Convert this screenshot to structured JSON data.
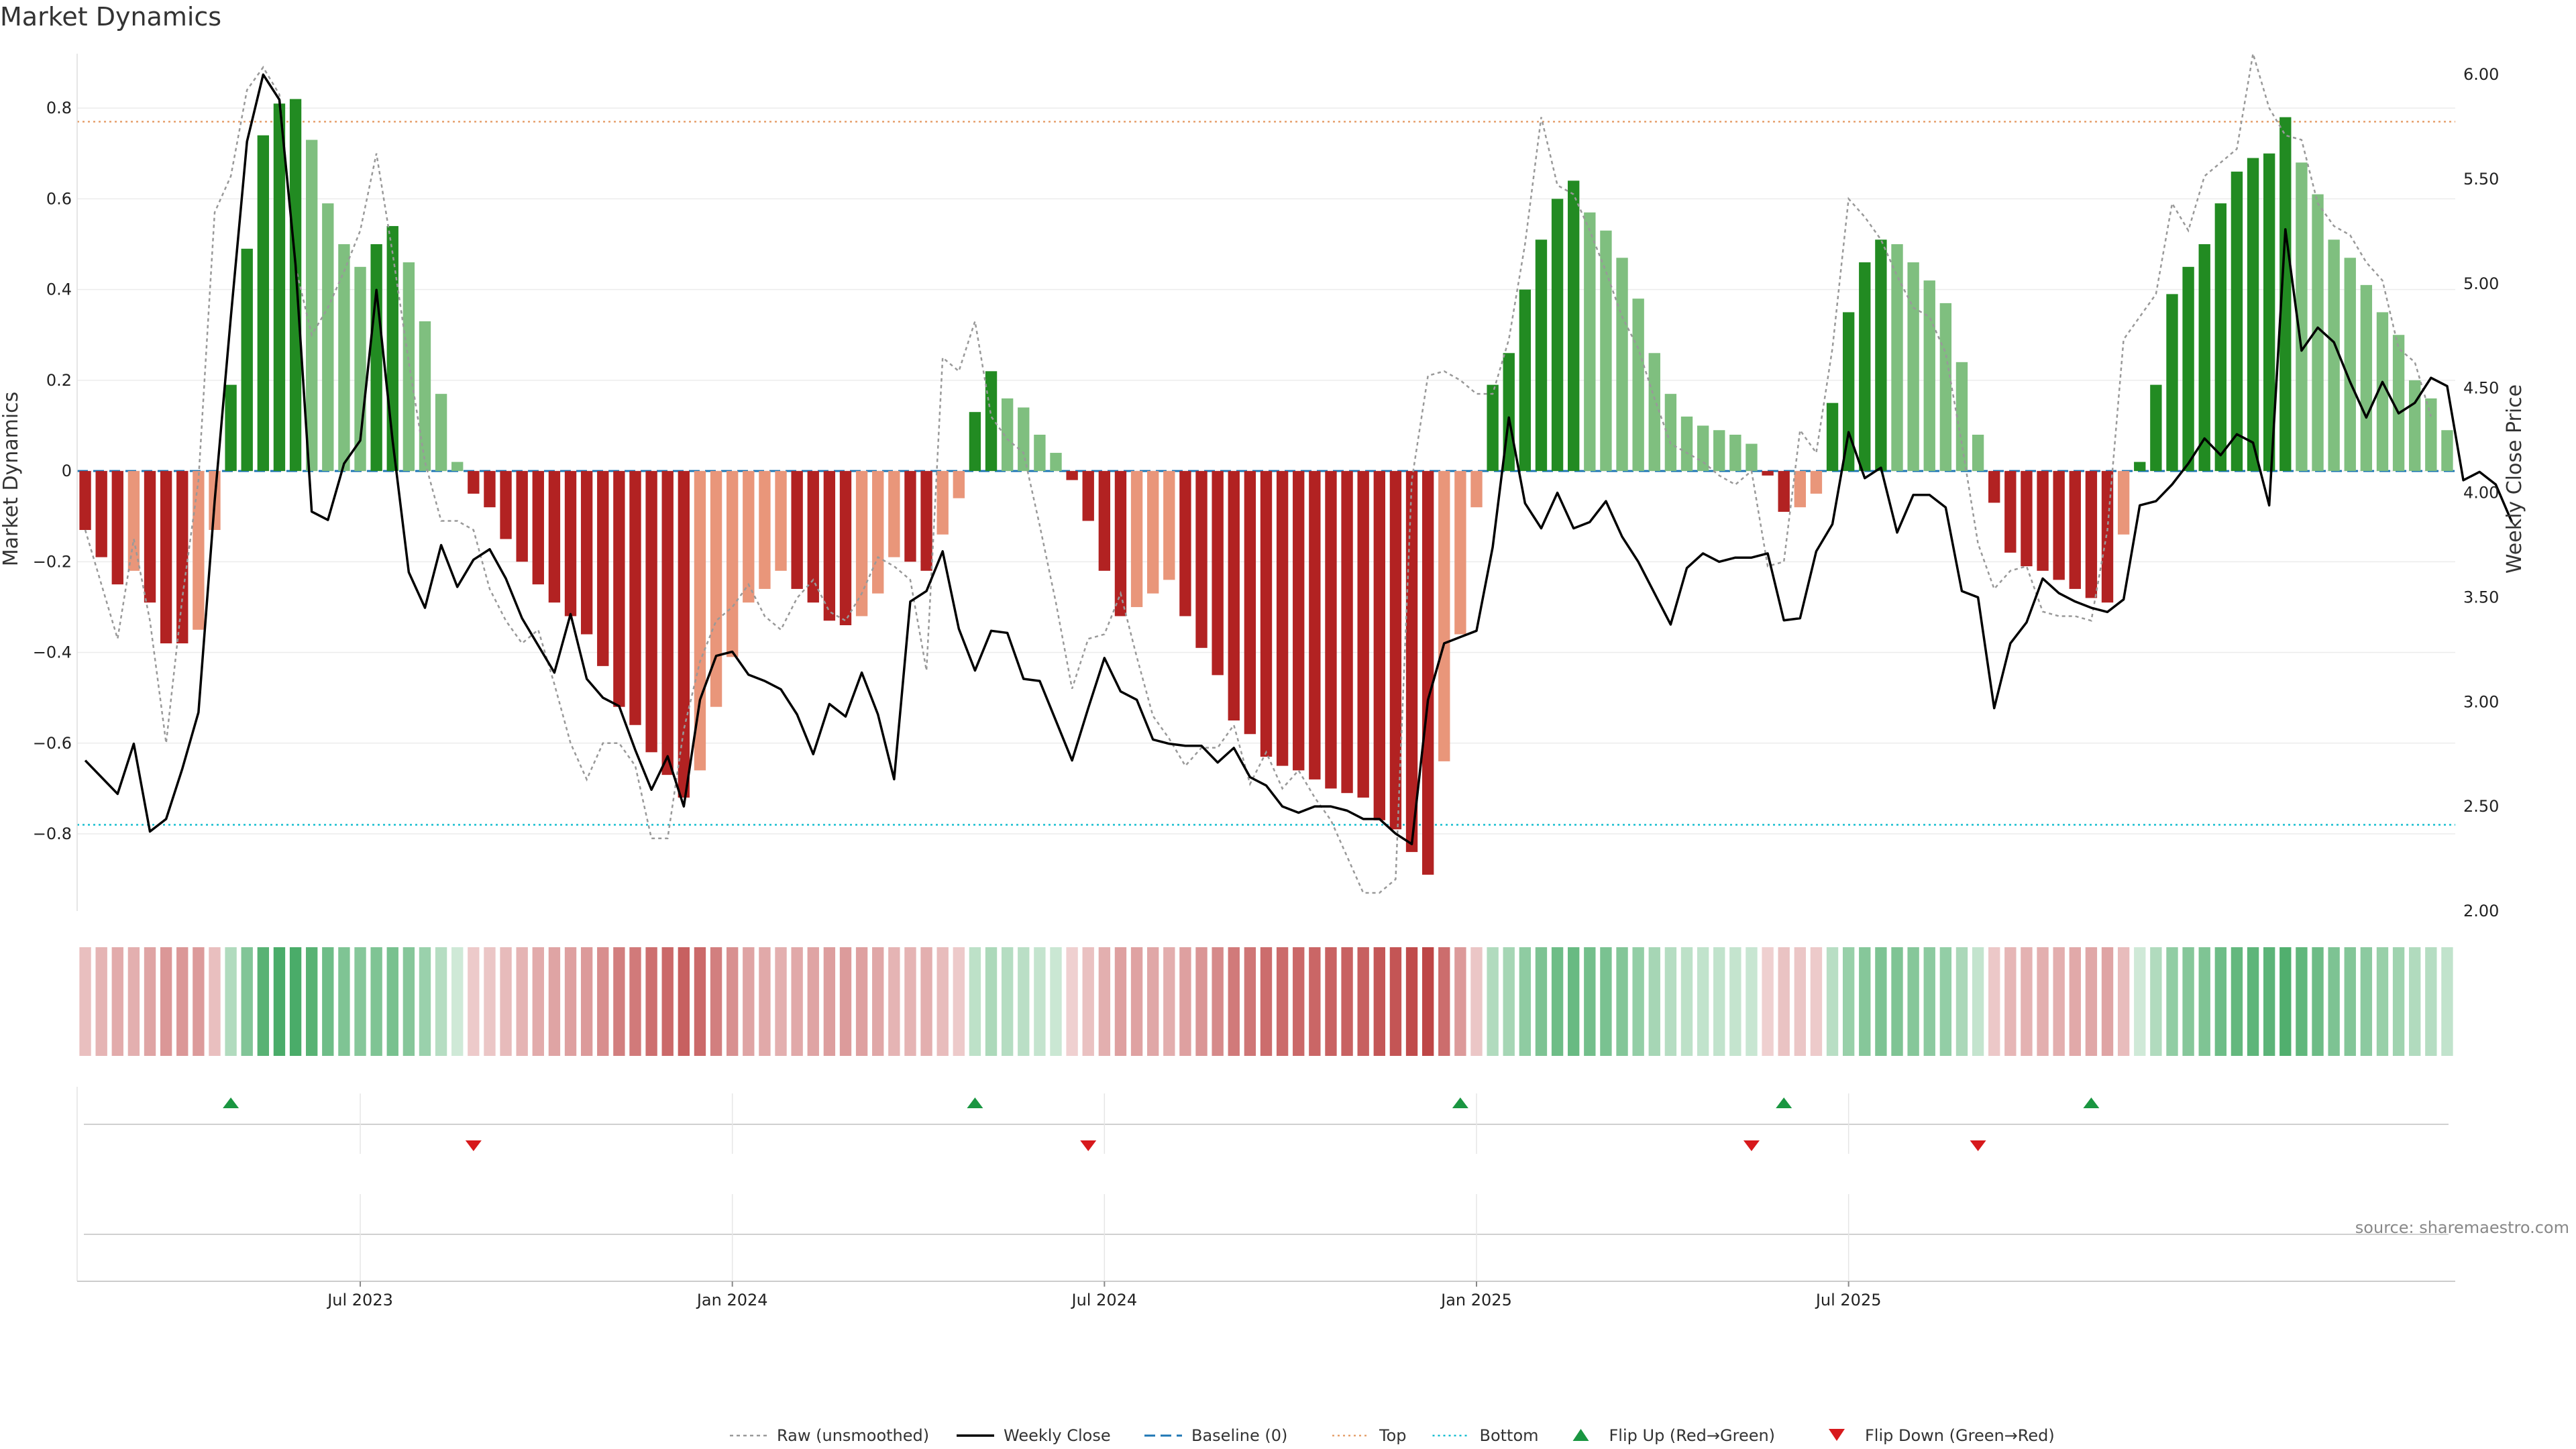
{
  "chart_data": {
    "type": "bar",
    "title": "Market Dynamics",
    "ylabel_left": "Market Dynamics",
    "ylabel_right": "Weekly Close Price",
    "ylim_left": [
      -0.97,
      0.92
    ],
    "ylim_right": [
      2.0,
      6.1
    ],
    "yticks_left": [
      "0.8",
      "0.6",
      "0.4",
      "0.2",
      "0",
      "−0.2",
      "−0.4",
      "−0.6",
      "−0.8"
    ],
    "yticks_right": [
      "6.00",
      "5.50",
      "5.00",
      "4.50",
      "4.00",
      "3.50",
      "3.00",
      "2.50",
      "2.00"
    ],
    "xticks": [
      "Jul 2023",
      "Jan 2024",
      "Jul 2024",
      "Jan 2025",
      "Jul 2025"
    ],
    "grid": true,
    "top_level": 0.77,
    "bottom_level": -0.78,
    "series": [
      {
        "name": "Market Dynamics",
        "style": "bars",
        "values": [
          -0.13,
          -0.19,
          -0.25,
          -0.22,
          -0.29,
          -0.38,
          -0.38,
          -0.35,
          -0.13,
          0.19,
          0.49,
          0.74,
          0.81,
          0.82,
          0.73,
          0.59,
          0.5,
          0.45,
          0.5,
          0.54,
          0.46,
          0.33,
          0.17,
          0.02,
          -0.05,
          -0.08,
          -0.15,
          -0.2,
          -0.25,
          -0.29,
          -0.32,
          -0.36,
          -0.43,
          -0.52,
          -0.56,
          -0.62,
          -0.67,
          -0.72,
          -0.66,
          -0.52,
          -0.41,
          -0.29,
          -0.26,
          -0.22,
          -0.26,
          -0.29,
          -0.33,
          -0.34,
          -0.32,
          -0.27,
          -0.19,
          -0.2,
          -0.22,
          -0.14,
          -0.06,
          0.13,
          0.22,
          0.16,
          0.14,
          0.08,
          0.04,
          -0.02,
          -0.11,
          -0.22,
          -0.32,
          -0.3,
          -0.27,
          -0.24,
          -0.32,
          -0.39,
          -0.45,
          -0.55,
          -0.58,
          -0.63,
          -0.65,
          -0.66,
          -0.68,
          -0.7,
          -0.71,
          -0.72,
          -0.77,
          -0.79,
          -0.84,
          -0.89,
          -0.64,
          -0.36,
          -0.08,
          0.19,
          0.26,
          0.4,
          0.51,
          0.6,
          0.64,
          0.57,
          0.53,
          0.47,
          0.38,
          0.26,
          0.17,
          0.12,
          0.1,
          0.09,
          0.08,
          0.06,
          -0.01,
          -0.09,
          -0.08,
          -0.05,
          0.15,
          0.35,
          0.46,
          0.51,
          0.5,
          0.46,
          0.42,
          0.37,
          0.24,
          0.08,
          -0.07,
          -0.18,
          -0.21,
          -0.22,
          -0.24,
          -0.26,
          -0.28,
          -0.29,
          -0.14,
          0.02,
          0.19,
          0.39,
          0.45,
          0.5,
          0.59,
          0.66,
          0.69,
          0.7,
          0.78,
          0.68,
          0.61,
          0.51,
          0.47,
          0.41,
          0.35,
          0.3,
          0.2,
          0.16,
          0.09
        ],
        "colors": {
          "strong_up": "#228b22",
          "weak_up": "#7fbf7f",
          "strong_down": "#b22222",
          "weak_down": "#e9967a"
        }
      },
      {
        "name": "Raw (unsmoothed)",
        "style": "dotted line",
        "color": "#999999",
        "values": [
          -0.13,
          -0.25,
          -0.37,
          -0.15,
          -0.33,
          -0.6,
          -0.28,
          -0.02,
          0.57,
          0.65,
          0.84,
          0.89,
          0.83,
          0.45,
          0.3,
          0.36,
          0.44,
          0.53,
          0.7,
          0.48,
          0.24,
          0.02,
          -0.11,
          -0.11,
          -0.13,
          -0.26,
          -0.33,
          -0.38,
          -0.35,
          -0.47,
          -0.6,
          -0.68,
          -0.6,
          -0.6,
          -0.65,
          -0.81,
          -0.81,
          -0.57,
          -0.42,
          -0.33,
          -0.3,
          -0.25,
          -0.32,
          -0.35,
          -0.28,
          -0.24,
          -0.31,
          -0.33,
          -0.27,
          -0.19,
          -0.21,
          -0.24,
          -0.44,
          0.25,
          0.22,
          0.33,
          0.12,
          0.07,
          0.04,
          -0.12,
          -0.29,
          -0.48,
          -0.37,
          -0.36,
          -0.27,
          -0.41,
          -0.54,
          -0.59,
          -0.65,
          -0.61,
          -0.61,
          -0.56,
          -0.69,
          -0.62,
          -0.7,
          -0.66,
          -0.72,
          -0.77,
          -0.85,
          -0.93,
          -0.93,
          -0.9,
          -0.02,
          0.21,
          0.22,
          0.2,
          0.17,
          0.17,
          0.29,
          0.5,
          0.78,
          0.63,
          0.61,
          0.53,
          0.44,
          0.34,
          0.27,
          0.16,
          0.06,
          0.04,
          0.02,
          -0.01,
          -0.03,
          0.0,
          -0.21,
          -0.2,
          0.09,
          0.04,
          0.27,
          0.6,
          0.56,
          0.51,
          0.43,
          0.36,
          0.34,
          0.26,
          0.06,
          -0.16,
          -0.26,
          -0.22,
          -0.21,
          -0.31,
          -0.32,
          -0.32,
          -0.33,
          -0.13,
          0.29,
          0.34,
          0.39,
          0.59,
          0.53,
          0.65,
          0.68,
          0.71,
          0.92,
          0.8,
          0.74,
          0.73,
          0.59,
          0.54,
          0.52,
          0.46,
          0.42,
          0.27,
          0.24,
          0.12
        ]
      },
      {
        "name": "Weekly Close",
        "style": "solid line",
        "color": "#000000",
        "axis": "right",
        "values": [
          2.72,
          2.64,
          2.56,
          2.8,
          2.38,
          2.44,
          2.68,
          2.95,
          3.96,
          4.84,
          5.68,
          6.0,
          5.88,
          5.09,
          3.91,
          3.87,
          4.14,
          4.25,
          4.97,
          4.25,
          3.62,
          3.45,
          3.75,
          3.55,
          3.68,
          3.73,
          3.59,
          3.4,
          3.27,
          3.14,
          3.42,
          3.11,
          3.02,
          2.98,
          2.77,
          2.58,
          2.74,
          2.5,
          3.01,
          3.22,
          3.24,
          3.13,
          3.1,
          3.06,
          2.94,
          2.75,
          2.99,
          2.93,
          3.14,
          2.94,
          2.63,
          3.48,
          3.53,
          3.72,
          3.35,
          3.15,
          3.34,
          3.33,
          3.11,
          3.1,
          2.91,
          2.72,
          2.97,
          3.21,
          3.05,
          3.01,
          2.82,
          2.8,
          2.79,
          2.79,
          2.71,
          2.78,
          2.64,
          2.6,
          2.5,
          2.47,
          2.5,
          2.5,
          2.48,
          2.44,
          2.44,
          2.37,
          2.32,
          3.01,
          3.28,
          3.31,
          3.34,
          3.74,
          4.36,
          3.95,
          3.83,
          4.0,
          3.83,
          3.86,
          3.96,
          3.79,
          3.67,
          3.52,
          3.37,
          3.64,
          3.71,
          3.67,
          3.69,
          3.69,
          3.71,
          3.39,
          3.4,
          3.72,
          3.85,
          4.29,
          4.07,
          4.12,
          3.81,
          3.99,
          3.99,
          3.93,
          3.53,
          3.5,
          2.97,
          3.28,
          3.38,
          3.59,
          3.52,
          3.48,
          3.45,
          3.43,
          3.49,
          3.94,
          3.96,
          4.04,
          4.14,
          4.26,
          4.18,
          4.28,
          4.24,
          3.94,
          5.26,
          4.68,
          4.79,
          4.72,
          4.53,
          4.36,
          4.53,
          4.38,
          4.43,
          4.55,
          4.51,
          4.06,
          4.1,
          4.04,
          3.86
        ]
      },
      {
        "name": "Baseline (0)",
        "style": "dashed line",
        "color": "#1f77b4",
        "value": 0
      },
      {
        "name": "Top",
        "style": "dotted line",
        "color": "#e6a16e",
        "value": 0.77
      },
      {
        "name": "Bottom",
        "style": "dotted line",
        "color": "#17becf",
        "value": -0.78
      }
    ],
    "flip_up": {
      "name": "Flip Up (Red→Green)",
      "color": "#1a9641",
      "indices": [
        9,
        55,
        85,
        105,
        124
      ]
    },
    "flip_down": {
      "name": "Flip Down (Green→Red)",
      "color": "#d7191c",
      "indices": [
        24,
        62,
        103,
        117
      ]
    },
    "legend_position": "bottom-center"
  },
  "source_note": "source: sharemaestro.com"
}
